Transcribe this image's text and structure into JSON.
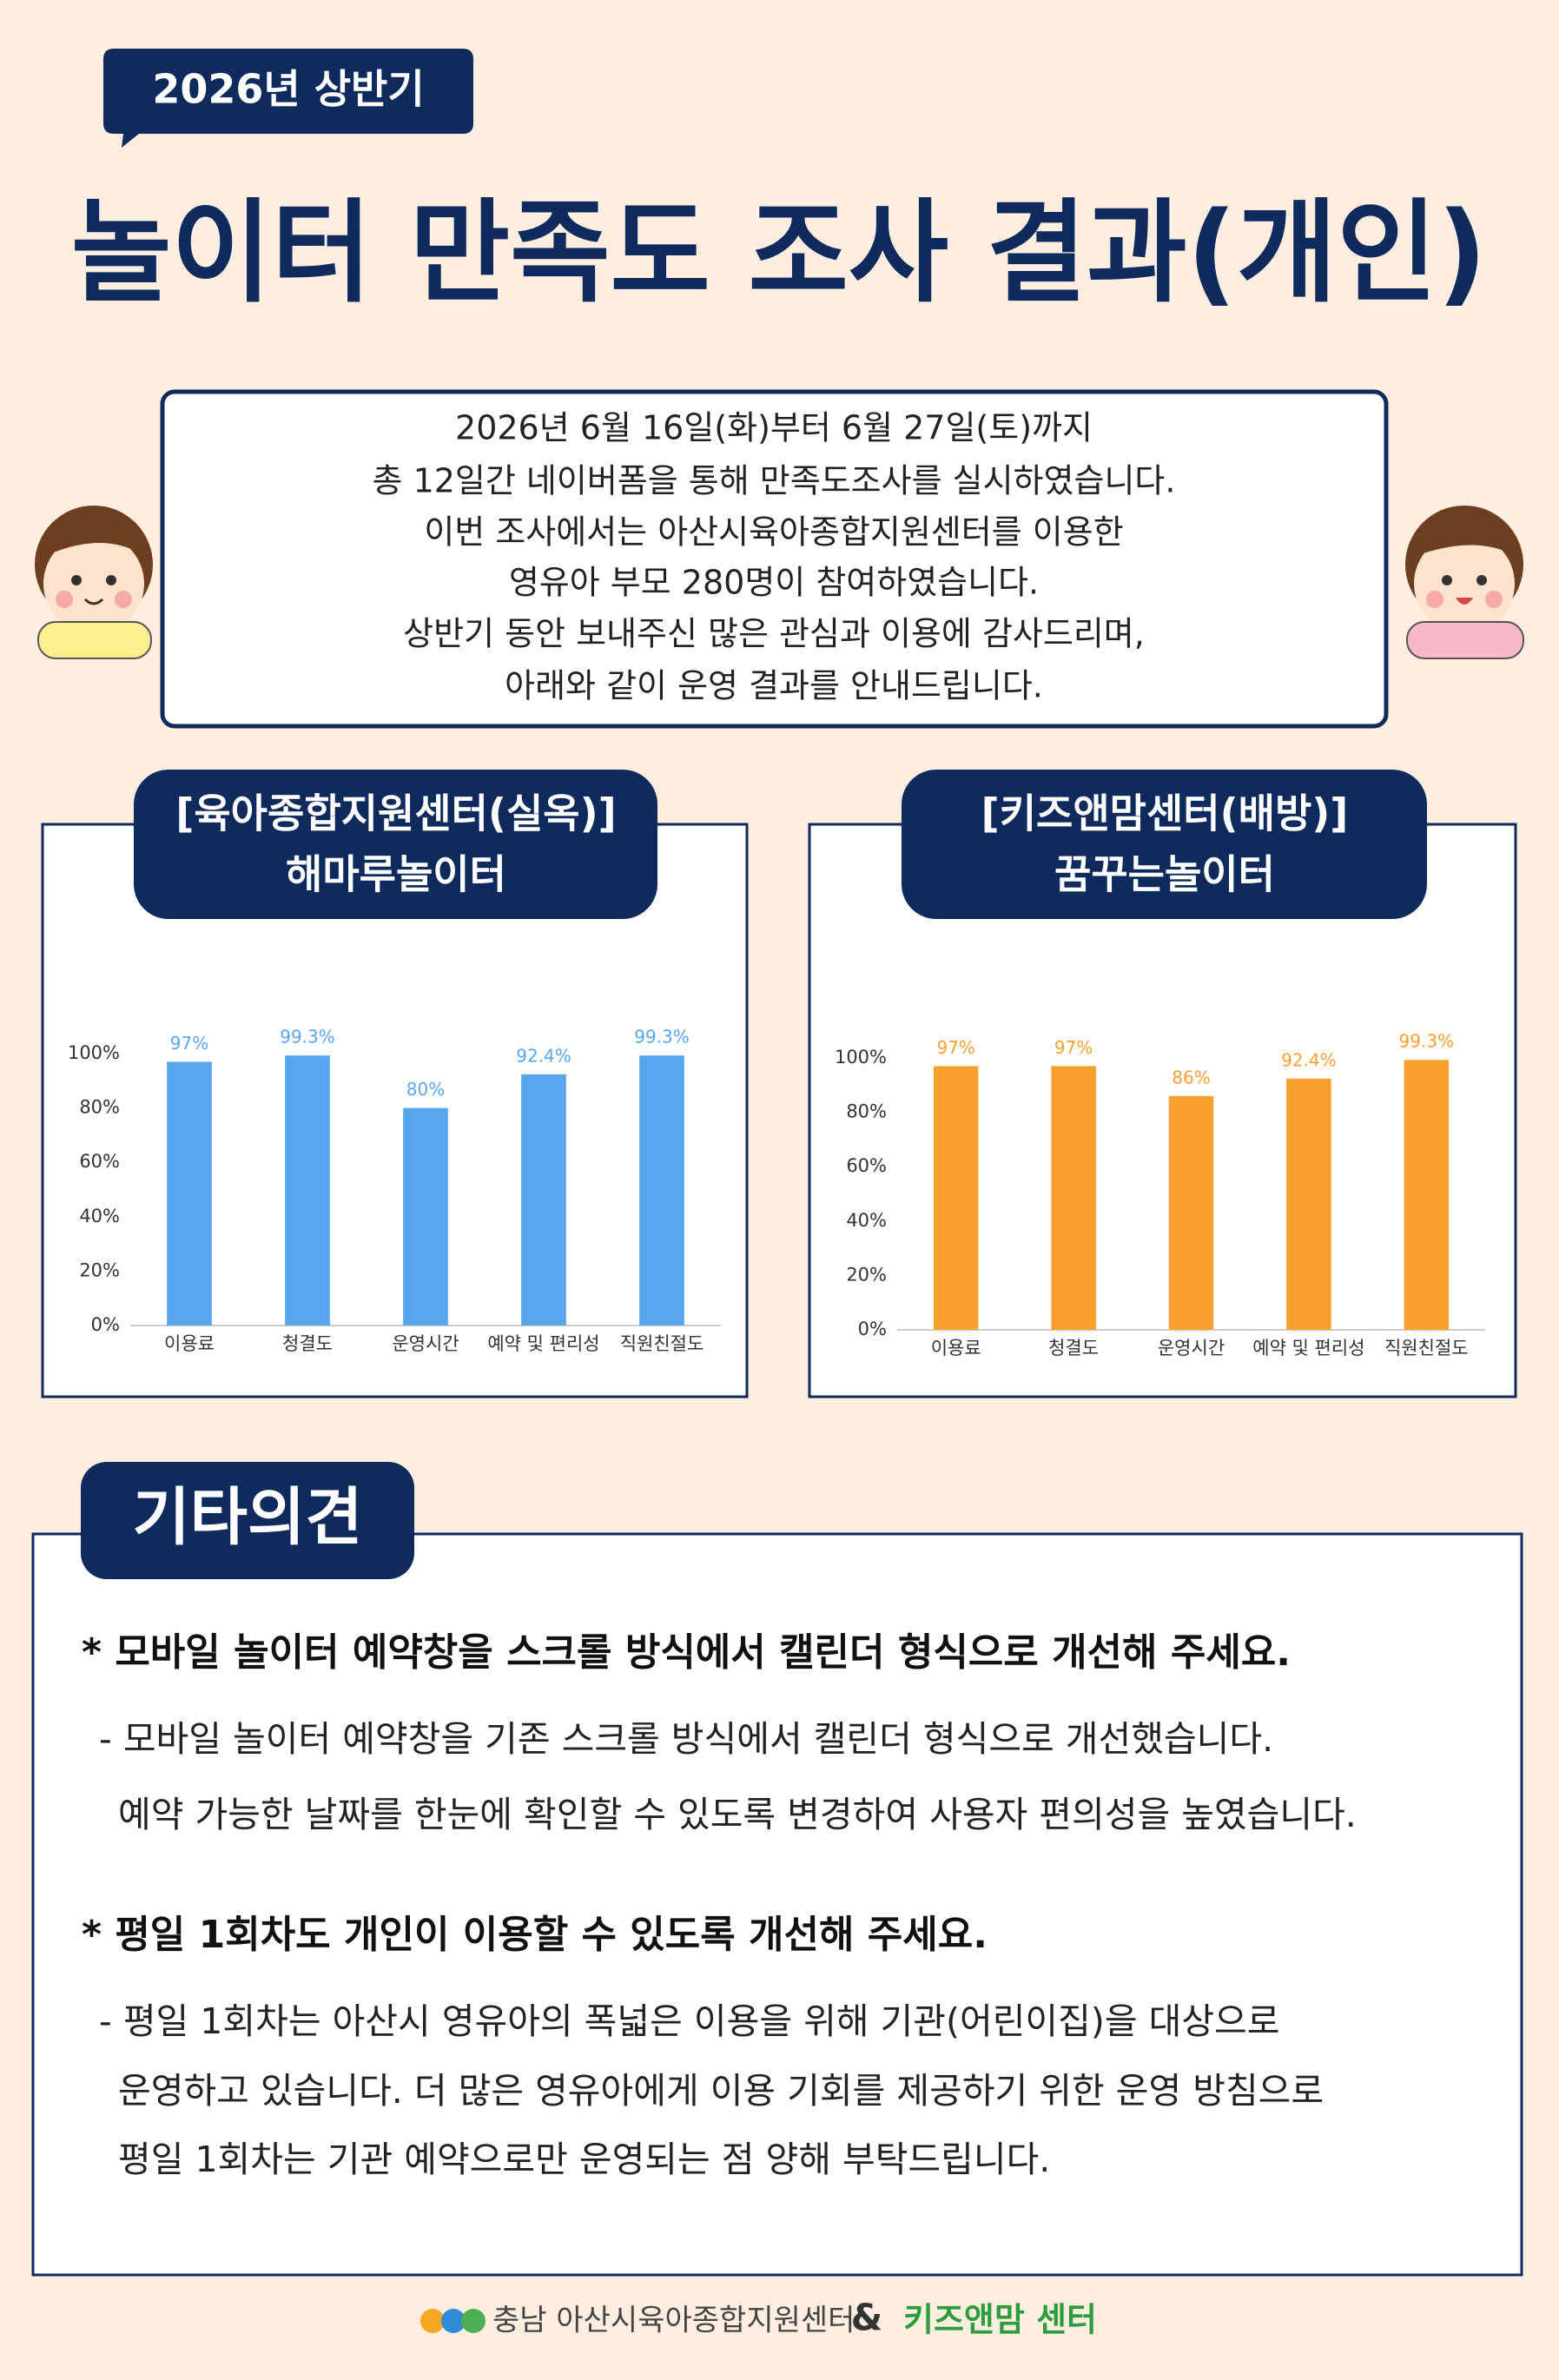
{
  "header": {
    "tag": "2026년 상반기",
    "title": "놀이터 만족도 조사 결과(개인)"
  },
  "intro": {
    "lines": [
      "2026년 6월 16일(화)부터 6월 27일(토)까지",
      "총 12일간 네이버폼을 통해 만족도조사를 실시하였습니다.",
      "이번 조사에서는 아산시육아종합지원센터를 이용한",
      "영유아 부모 280명이 참여하였습니다.",
      "상반기 동안 보내주신 많은 관심과 이용에 감사드리며,",
      "아래와 같이 운영 결과를 안내드립니다."
    ]
  },
  "chart_data": [
    {
      "type": "bar",
      "title": "[육아종합지원센터(실옥)]",
      "subtitle": "해마루놀이터",
      "categories": [
        "이용료",
        "청결도",
        "운영시간",
        "예약 및 편리성",
        "직원친절도"
      ],
      "values": [
        97,
        99.3,
        80,
        92.4,
        99.3
      ],
      "value_labels": [
        "97%",
        "99.3%",
        "80%",
        "92.4%",
        "99.3%"
      ],
      "color": "#5aa6ee",
      "ylim": [
        0,
        100
      ],
      "yticks": [
        {
          "value": 0,
          "label": "0%"
        },
        {
          "value": 20,
          "label": "20%"
        },
        {
          "value": 40,
          "label": "40%"
        },
        {
          "value": 60,
          "label": "60%"
        },
        {
          "value": 80,
          "label": "80%"
        },
        {
          "value": 100,
          "label": "100%"
        }
      ],
      "grid": false
    },
    {
      "type": "bar",
      "title": "[키즈앤맘센터(배방)]",
      "subtitle": "꿈꾸는놀이터",
      "categories": [
        "이용료",
        "청결도",
        "운영시간",
        "예약 및 편리성",
        "직원친절도"
      ],
      "values": [
        97,
        97,
        86,
        92.4,
        99.3
      ],
      "value_labels": [
        "97%",
        "97%",
        "86%",
        "92.4%",
        "99.3%"
      ],
      "color": "#f9a02e",
      "ylim": [
        0,
        100
      ],
      "yticks": [
        {
          "value": 0,
          "label": "0%"
        },
        {
          "value": 20,
          "label": "20%"
        },
        {
          "value": 40,
          "label": "40%"
        },
        {
          "value": 60,
          "label": "60%"
        },
        {
          "value": 80,
          "label": "80%"
        },
        {
          "value": 100,
          "label": "100%"
        }
      ],
      "grid": false
    }
  ],
  "opinions": {
    "title": "기타의견",
    "items": [
      {
        "question": "* 모바일 놀이터 예약창을 스크롤 방식에서 캘린더 형식으로 개선해 주세요.",
        "answer": [
          "- 모바일 놀이터 예약창을 기존 스크롤 방식에서 캘린더 형식으로 개선했습니다.",
          "예약 가능한 날짜를 한눈에 확인할 수 있도록 변경하여 사용자 편의성을 높였습니다."
        ]
      },
      {
        "question": "* 평일 1회차도 개인이 이용할 수 있도록 개선해 주세요.",
        "answer": [
          "- 평일 1회차는 아산시 영유아의 폭넓은 이용을 위해 기관(어린이집)을 대상으로",
          "운영하고 있습니다. 더 많은 영유아에게 이용 기회를 제공하기 위한 운영 방침으로",
          "평일 1회차는 기관 예약으로만 운영되는 점 양해 부탁드립니다."
        ]
      }
    ]
  },
  "footer": {
    "org1": "충남 아산시육아종합지원센터",
    "amp": "&",
    "org2": "키즈앤맘 센터"
  }
}
